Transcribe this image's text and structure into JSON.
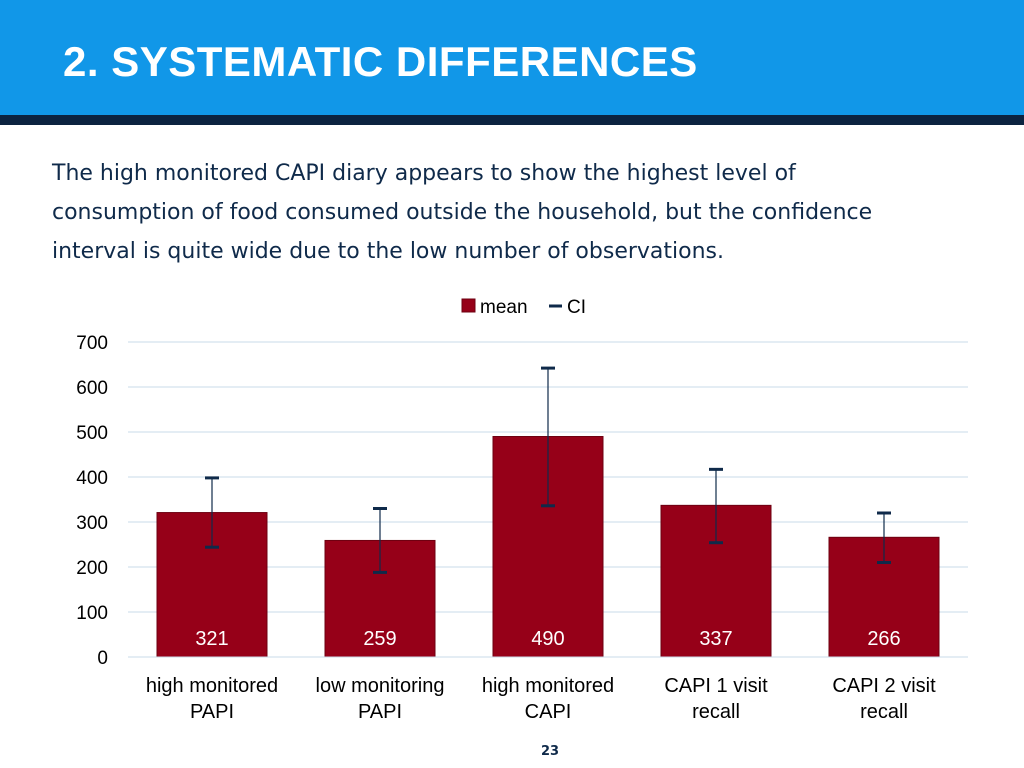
{
  "slide": {
    "title": "2. SYSTEMATIC DIFFERENCES",
    "body_lines": [
      "The high monitored CAPI diary appears to show the highest level of",
      "consumption of food consumed outside the household, but the confidence",
      "interval is quite wide due to the low number of observations."
    ],
    "page_number": "23"
  },
  "colors": {
    "header": "#1197e8",
    "header_rule": "#0c2340",
    "bar": "#960018",
    "ci": "#0f2a4a",
    "grid": "#c9dbe8"
  },
  "chart_data": {
    "type": "bar",
    "categories": [
      [
        "high monitored",
        "PAPI"
      ],
      [
        "low monitoring",
        "PAPI"
      ],
      [
        "high monitored",
        "CAPI"
      ],
      [
        "CAPI 1 visit",
        "recall"
      ],
      [
        "CAPI 2 visit",
        "recall"
      ]
    ],
    "series": [
      {
        "name": "mean",
        "values": [
          321,
          259,
          490,
          337,
          266
        ],
        "data_labels": [
          "321",
          "259",
          "490",
          "337",
          "266"
        ]
      },
      {
        "name": "CI",
        "lower": [
          244,
          188,
          336,
          254,
          210
        ],
        "upper": [
          398,
          330,
          642,
          417,
          320
        ]
      }
    ],
    "ylim": [
      0,
      700
    ],
    "yticks": [
      "0",
      "100",
      "200",
      "300",
      "400",
      "500",
      "600",
      "700"
    ],
    "grid": true,
    "legend_position": "top-center"
  }
}
